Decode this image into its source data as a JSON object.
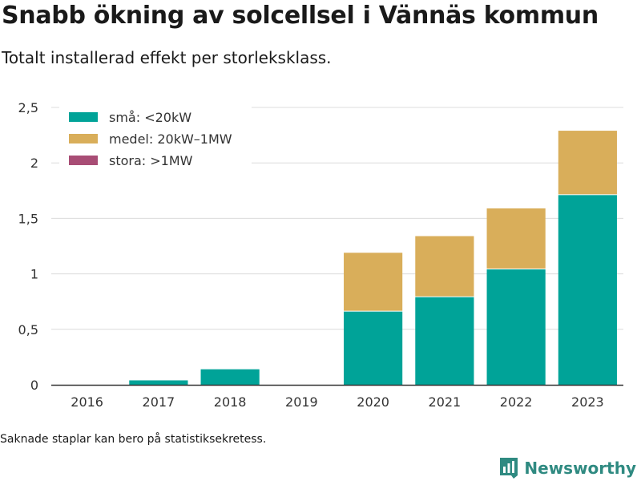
{
  "title": "Snabb ökning av solcellsel i Vännäs kommun",
  "subtitle": "Totalt installerad effekt per storleksklass.",
  "footnote": "Saknade staplar kan bero på statistiksekretess.",
  "brand": {
    "name": "Newsworthy",
    "icon": "newsworthy-logo-icon",
    "color": "#2f8a81"
  },
  "chart_data": {
    "type": "bar",
    "stacked": true,
    "categories": [
      "2016",
      "2017",
      "2018",
      "2019",
      "2020",
      "2021",
      "2022",
      "2023"
    ],
    "series": [
      {
        "name": "små: <20kW",
        "color": "#00a398",
        "values": [
          0,
          0.04,
          0.14,
          0,
          0.66,
          0.79,
          1.04,
          1.71
        ]
      },
      {
        "name": "medel: 20kW–1MW",
        "color": "#d9ae5a",
        "values": [
          0,
          0,
          0,
          0,
          0.53,
          0.55,
          0.55,
          0.58
        ]
      },
      {
        "name": "stora: >1MW",
        "color": "#a84d75",
        "values": [
          0,
          0,
          0,
          0,
          0,
          0,
          0,
          0
        ]
      }
    ],
    "yticks": [
      "0",
      "0,5",
      "1",
      "1,5",
      "2",
      "2,5"
    ],
    "ytick_values": [
      0,
      0.5,
      1,
      1.5,
      2,
      2.5
    ],
    "ylim": [
      0,
      2.5
    ],
    "xlabel": "",
    "ylabel": "",
    "grid": true,
    "legend_position": "top-left"
  }
}
